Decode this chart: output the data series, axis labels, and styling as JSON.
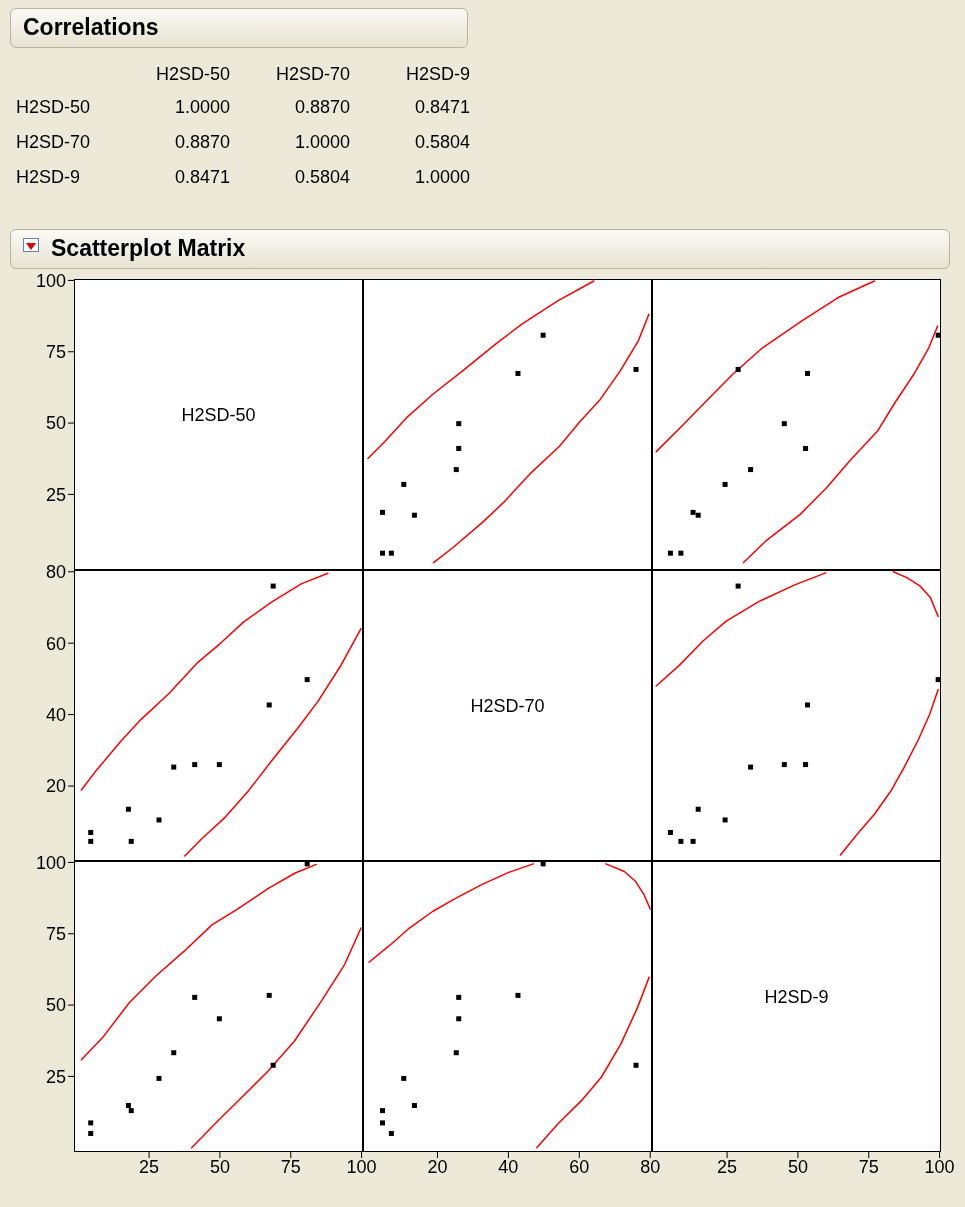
{
  "chart_data": [
    {
      "type": "other",
      "title": "Correlations",
      "categories": [
        "H2SD-50",
        "H2SD-70",
        "H2SD-9"
      ],
      "y_categories": [
        "H2SD-50",
        "H2SD-70",
        "H2SD-9"
      ],
      "annotations": [
        "1.0000",
        "0.8870",
        "0.8471",
        "0.8870",
        "1.0000",
        "0.5804",
        "0.8471",
        "0.5804",
        "1.0000"
      ]
    },
    {
      "type": "scatter",
      "title": "Scatterplot Matrix",
      "annotations": [
        "H2SD-50"
      ],
      "xlim": [
        -1.5,
        100.5
      ],
      "xticks": [
        25,
        50,
        75,
        100
      ],
      "ylim": [
        -1.5,
        100.5
      ],
      "yticks": [
        25,
        50,
        75,
        100
      ],
      "tick_labels": "y"
    },
    {
      "type": "scatter",
      "xlim": [
        -1,
        80.5
      ],
      "xticks": [
        20,
        40,
        60,
        80
      ],
      "ylim": [
        -1.5,
        100.5
      ],
      "yticks": [
        25,
        50,
        75,
        100
      ],
      "tick_labels": false,
      "series": [
        {
          "type": "scatter",
          "marker": "square",
          "color": "#000000",
          "x": [
            4.5,
            7,
            13.5,
            4.5,
            10.5,
            25.3,
            26,
            26,
            42.7,
            76,
            49.8
          ],
          "values": [
            4.4,
            4.4,
            17.7,
            18.7,
            28.5,
            33.7,
            41.1,
            49.8,
            67.4,
            68.8,
            80.8
          ]
        },
        {
          "type": "line",
          "color": "#ff0000",
          "x": [
            18.9,
            24.3,
            32.6,
            38.6,
            46,
            54.4,
            59.9,
            65.9,
            71.5,
            76.6,
            79.6
          ],
          "values": [
            1.1,
            6.3,
            15.1,
            22.1,
            32.1,
            41.9,
            50.1,
            58.3,
            68.2,
            78.7,
            88.1
          ]
        },
        {
          "type": "line",
          "color": "#ff0000",
          "x": [
            0.4,
            5.3,
            11.3,
            18.7,
            27,
            36.3,
            43.7,
            53.9,
            64.1
          ],
          "values": [
            37.6,
            43.7,
            51.9,
            60.1,
            68.2,
            77.6,
            84.6,
            92.8,
            99.8
          ]
        }
      ]
    },
    {
      "type": "scatter",
      "xlim": [
        -1.5,
        100.5
      ],
      "xticks": [
        25,
        50,
        75,
        100
      ],
      "ylim": [
        -1.5,
        100.5
      ],
      "yticks": [
        25,
        50,
        75,
        100
      ],
      "tick_labels": false,
      "series": [
        {
          "type": "scatter",
          "marker": "square",
          "color": "#000000",
          "x": [
            8.7,
            5,
            14.8,
            13,
            24.3,
            33.3,
            52.7,
            45.2,
            53.4,
            28.9,
            99.5
          ],
          "values": [
            4.4,
            4.4,
            17.7,
            18.7,
            28.5,
            33.7,
            41.1,
            49.8,
            67.4,
            68.8,
            80.8
          ]
        },
        {
          "type": "line",
          "color": "#ff0000",
          "x": [
            30.8,
            38.6,
            50.8,
            60.1,
            68.8,
            78.1,
            83.9,
            90.9,
            96.2,
            99.3
          ],
          "values": [
            1.1,
            8.6,
            18,
            27.3,
            37.3,
            47.2,
            56.6,
            67.1,
            76.4,
            84
          ]
        },
        {
          "type": "line",
          "color": "#ff0000",
          "x": [
            0,
            9.6,
            18.8,
            27,
            37.5,
            51.4,
            64.2,
            77
          ],
          "values": [
            40,
            49.5,
            58.9,
            67.1,
            76.4,
            85.8,
            94,
            99.8
          ]
        }
      ]
    },
    {
      "type": "scatter",
      "xlim": [
        -1.5,
        100.5
      ],
      "xticks": [
        25,
        50,
        75,
        100
      ],
      "ylim": [
        -1,
        80.5
      ],
      "yticks": [
        20,
        40,
        60,
        80
      ],
      "tick_labels": "y",
      "series": [
        {
          "type": "scatter",
          "marker": "square",
          "color": "#000000",
          "x": [
            4.4,
            4.4,
            17.7,
            18.7,
            28.5,
            33.7,
            41.1,
            49.8,
            67.4,
            68.8,
            80.8
          ],
          "values": [
            4.5,
            7,
            13.5,
            4.5,
            10.5,
            25.3,
            26,
            26,
            42.7,
            76,
            49.8
          ]
        },
        {
          "type": "line",
          "color": "#ff0000",
          "x": [
            1.1,
            6.3,
            15.1,
            22.1,
            32.1,
            41.9,
            50.1,
            58.3,
            68.2,
            78.7,
            88.1
          ],
          "values": [
            18.9,
            24.3,
            32.6,
            38.6,
            46,
            54.4,
            59.9,
            65.9,
            71.5,
            76.6,
            79.6
          ]
        },
        {
          "type": "line",
          "color": "#ff0000",
          "x": [
            37.6,
            43.7,
            51.9,
            60.1,
            68.2,
            77.6,
            84.6,
            92.8,
            99.8
          ],
          "values": [
            0.4,
            5.3,
            11.3,
            18.7,
            27,
            36.3,
            43.7,
            53.9,
            64.1
          ]
        }
      ]
    },
    {
      "type": "other",
      "annotations": [
        "H2SD-70"
      ]
    },
    {
      "type": "scatter",
      "xlim": [
        -1.5,
        100.5
      ],
      "xticks": [
        25,
        50,
        75,
        100
      ],
      "ylim": [
        -1,
        80.5
      ],
      "yticks": [
        20,
        40,
        60,
        80
      ],
      "tick_labels": false,
      "series": [
        {
          "type": "scatter",
          "marker": "square",
          "color": "#000000",
          "x": [
            8.7,
            5,
            14.8,
            13,
            24.3,
            33.3,
            52.7,
            45.2,
            53.4,
            28.9,
            99.5
          ],
          "values": [
            4.5,
            7,
            13.5,
            4.5,
            10.5,
            25.3,
            26,
            26,
            42.7,
            76,
            49.8
          ]
        },
        {
          "type": "line",
          "color": "#ff0000",
          "x": [
            65,
            70.9,
            77,
            82.8,
            87.4,
            92.3,
            96.5,
            99.5
          ],
          "values": [
            0.7,
            6.5,
            12.1,
            18.6,
            25.1,
            32.6,
            40.1,
            47
          ]
        },
        {
          "type": "line",
          "color": "#ff0000",
          "x": [
            99.5,
            96.8,
            93.3,
            88.6,
            83.7
          ],
          "values": [
            67.5,
            72.7,
            75.9,
            78.3,
            80
          ]
        },
        {
          "type": "line",
          "color": "#ff0000",
          "x": [
            0,
            8.4,
            16.5,
            24.7,
            36.3,
            49.1,
            59.8
          ],
          "values": [
            48,
            54,
            60.6,
            66.2,
            71.7,
            76.4,
            79.7
          ]
        }
      ]
    },
    {
      "type": "scatter",
      "xlim": [
        -1.5,
        100.5
      ],
      "xticks": [
        25,
        50,
        75,
        100
      ],
      "ylim": [
        -1.5,
        100.5
      ],
      "yticks": [
        25,
        50,
        75,
        100
      ],
      "series": [
        {
          "type": "scatter",
          "marker": "square",
          "color": "#000000",
          "x": [
            4.4,
            4.4,
            17.7,
            18.7,
            28.5,
            33.7,
            41.1,
            49.8,
            67.4,
            68.8,
            80.8
          ],
          "values": [
            8.7,
            5,
            14.8,
            13,
            24.3,
            33.3,
            52.7,
            45.2,
            53.4,
            28.9,
            99.5
          ]
        },
        {
          "type": "line",
          "color": "#ff0000",
          "x": [
            1.1,
            8.6,
            18,
            27.3,
            37.3,
            47.2,
            56.6,
            67.1,
            76.4,
            84
          ],
          "values": [
            30.8,
            38.6,
            50.8,
            60.1,
            68.8,
            78.1,
            83.9,
            90.9,
            96.2,
            99.3
          ]
        },
        {
          "type": "line",
          "color": "#ff0000",
          "x": [
            40,
            49.5,
            58.9,
            67.1,
            76.4,
            85.8,
            94,
            99.8
          ],
          "values": [
            0,
            9.6,
            18.8,
            27,
            37.5,
            51.4,
            64.2,
            77
          ]
        }
      ]
    },
    {
      "type": "scatter",
      "xlim": [
        -1,
        80.5
      ],
      "xticks": [
        20,
        40,
        60,
        80
      ],
      "ylim": [
        -1.5,
        100.5
      ],
      "yticks": [
        25,
        50,
        75,
        100
      ],
      "tick_labels": "x",
      "series": [
        {
          "type": "scatter",
          "marker": "square",
          "color": "#000000",
          "x": [
            4.5,
            7,
            13.5,
            4.5,
            10.5,
            25.3,
            26,
            26,
            42.7,
            76,
            49.8
          ],
          "values": [
            8.7,
            5,
            14.8,
            13,
            24.3,
            33.3,
            52.7,
            45.2,
            53.4,
            28.9,
            99.5
          ]
        },
        {
          "type": "line",
          "color": "#ff0000",
          "x": [
            0.7,
            6.5,
            12.1,
            18.6,
            25.1,
            32.6,
            40.1,
            47
          ],
          "values": [
            65,
            70.9,
            77,
            82.8,
            87.4,
            92.3,
            96.5,
            99.5
          ]
        },
        {
          "type": "line",
          "color": "#ff0000",
          "x": [
            67.5,
            72.7,
            75.9,
            78.3,
            80
          ],
          "values": [
            99.5,
            96.8,
            93.3,
            88.6,
            83.7
          ]
        },
        {
          "type": "line",
          "color": "#ff0000",
          "x": [
            48,
            54,
            60.6,
            66.2,
            71.7,
            76.4,
            79.7
          ],
          "values": [
            0,
            8.4,
            16.5,
            24.7,
            36.3,
            49.1,
            59.8
          ]
        }
      ]
    },
    {
      "type": "scatter",
      "annotations": [
        "H2SD-9"
      ],
      "xlim": [
        -1.5,
        100.5
      ],
      "xticks": [
        25,
        50,
        75,
        100
      ],
      "ylim": [
        -1.5,
        100.5
      ],
      "yticks": [
        25,
        50,
        75,
        100
      ],
      "tick_labels": "x"
    }
  ]
}
